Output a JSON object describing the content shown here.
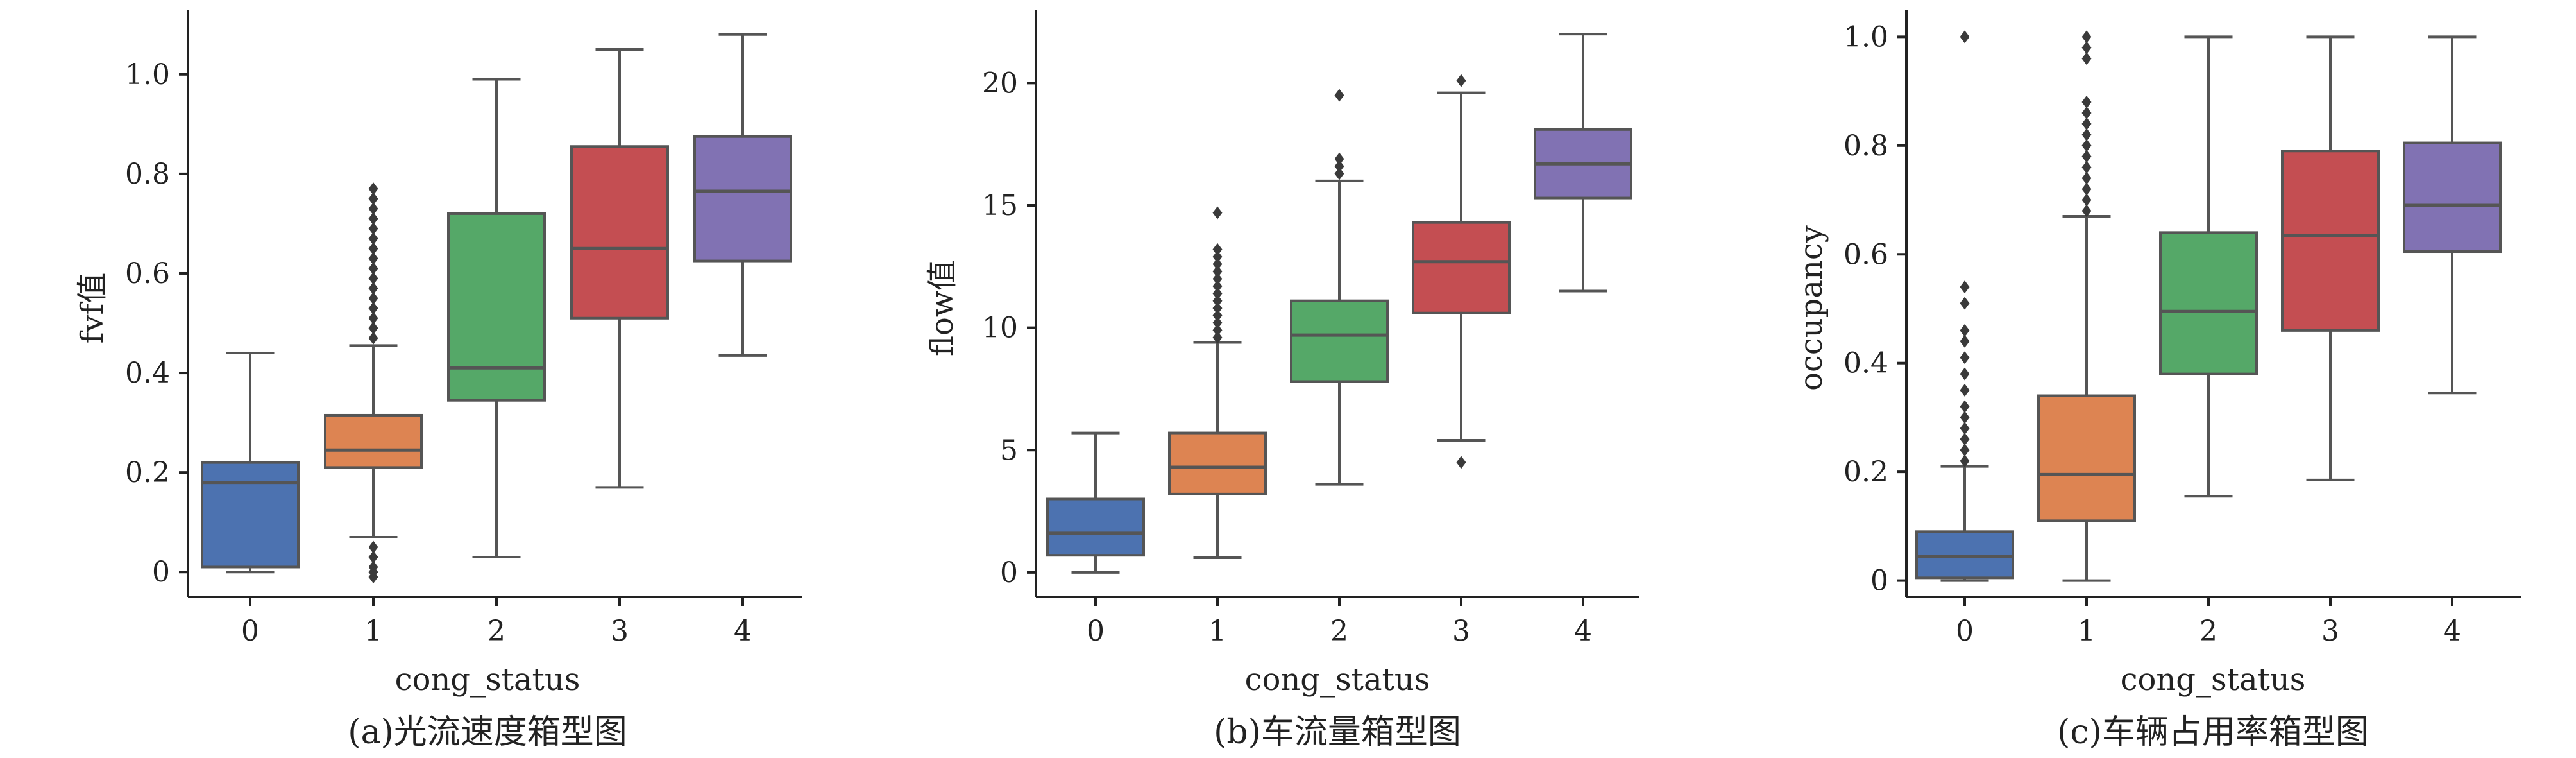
{
  "chart_data": [
    {
      "type": "box",
      "caption": "(a)光流速度箱型图",
      "xlabel": "cong_status",
      "ylabel": "fvf值",
      "categories": [
        "0",
        "1",
        "2",
        "3",
        "4"
      ],
      "ylim": [
        -0.05,
        1.13
      ],
      "yticks": [
        0,
        0.2,
        0.4,
        0.6,
        0.8,
        1.0
      ],
      "ytick_labels": [
        "0",
        "0.2",
        "0.4",
        "0.6",
        "0.8",
        "1.0"
      ],
      "boxes": [
        {
          "category": "0",
          "whisker_low": 0.0,
          "q1": 0.01,
          "median": 0.18,
          "q3": 0.22,
          "whisker_high": 0.44,
          "outliers": []
        },
        {
          "category": "1",
          "whisker_low": 0.07,
          "q1": 0.21,
          "median": 0.245,
          "q3": 0.315,
          "whisker_high": 0.455,
          "outliers": [
            0.47,
            0.49,
            0.51,
            0.53,
            0.55,
            0.57,
            0.59,
            0.61,
            0.63,
            0.65,
            0.67,
            0.69,
            0.71,
            0.73,
            0.75,
            0.77,
            0.05,
            0.03,
            0.01,
            0.0,
            -0.01
          ]
        },
        {
          "category": "2",
          "whisker_low": 0.03,
          "q1": 0.345,
          "median": 0.41,
          "q3": 0.72,
          "whisker_high": 0.99,
          "outliers": []
        },
        {
          "category": "3",
          "whisker_low": 0.17,
          "q1": 0.51,
          "median": 0.65,
          "q3": 0.855,
          "whisker_high": 1.05,
          "outliers": []
        },
        {
          "category": "4",
          "whisker_low": 0.435,
          "q1": 0.625,
          "median": 0.765,
          "q3": 0.875,
          "whisker_high": 1.08,
          "outliers": []
        }
      ]
    },
    {
      "type": "box",
      "caption": "(b)车流量箱型图",
      "xlabel": "cong_status",
      "ylabel": "flow值",
      "categories": [
        "0",
        "1",
        "2",
        "3",
        "4"
      ],
      "ylim": [
        -1.0,
        23.0
      ],
      "yticks": [
        0,
        5,
        10,
        15,
        20
      ],
      "ytick_labels": [
        "0",
        "5",
        "10",
        "15",
        "20"
      ],
      "boxes": [
        {
          "category": "0",
          "whisker_low": 0.0,
          "q1": 0.7,
          "median": 1.6,
          "q3": 3.0,
          "whisker_high": 5.7,
          "outliers": []
        },
        {
          "category": "1",
          "whisker_low": 0.6,
          "q1": 3.2,
          "median": 4.3,
          "q3": 5.7,
          "whisker_high": 9.4,
          "outliers": [
            9.6,
            9.9,
            10.2,
            10.5,
            10.8,
            11.1,
            11.4,
            11.7,
            12.0,
            12.3,
            12.6,
            12.9,
            13.2,
            14.7
          ]
        },
        {
          "category": "2",
          "whisker_low": 3.6,
          "q1": 7.8,
          "median": 9.7,
          "q3": 11.1,
          "whisker_high": 16.0,
          "outliers": [
            16.3,
            16.6,
            16.9,
            19.5
          ]
        },
        {
          "category": "3",
          "whisker_low": 5.4,
          "q1": 10.6,
          "median": 12.7,
          "q3": 14.3,
          "whisker_high": 19.6,
          "outliers": [
            20.1,
            4.5
          ]
        },
        {
          "category": "4",
          "whisker_low": 11.5,
          "q1": 15.3,
          "median": 16.7,
          "q3": 18.1,
          "whisker_high": 22.0,
          "outliers": []
        }
      ]
    },
    {
      "type": "box",
      "caption": "(c)车辆占用率箱型图",
      "xlabel": "cong_status",
      "ylabel": "occupancy",
      "categories": [
        "0",
        "1",
        "2",
        "3",
        "4"
      ],
      "ylim": [
        -0.03,
        1.05
      ],
      "yticks": [
        0,
        0.2,
        0.4,
        0.6,
        0.8,
        1.0
      ],
      "ytick_labels": [
        "0",
        "0.2",
        "0.4",
        "0.6",
        "0.8",
        "1.0"
      ],
      "boxes": [
        {
          "category": "0",
          "whisker_low": 0.0,
          "q1": 0.005,
          "median": 0.045,
          "q3": 0.09,
          "whisker_high": 0.21,
          "outliers": [
            0.22,
            0.24,
            0.26,
            0.28,
            0.3,
            0.32,
            0.35,
            0.38,
            0.41,
            0.44,
            0.46,
            0.51,
            0.54,
            1.0
          ]
        },
        {
          "category": "1",
          "whisker_low": 0.0,
          "q1": 0.11,
          "median": 0.195,
          "q3": 0.34,
          "whisker_high": 0.67,
          "outliers": [
            0.68,
            0.7,
            0.72,
            0.74,
            0.76,
            0.78,
            0.8,
            0.82,
            0.84,
            0.86,
            0.88,
            0.96,
            0.98,
            1.0
          ]
        },
        {
          "category": "2",
          "whisker_low": 0.155,
          "q1": 0.38,
          "median": 0.495,
          "q3": 0.64,
          "whisker_high": 1.0,
          "outliers": []
        },
        {
          "category": "3",
          "whisker_low": 0.185,
          "q1": 0.46,
          "median": 0.635,
          "q3": 0.79,
          "whisker_high": 1.0,
          "outliers": []
        },
        {
          "category": "4",
          "whisker_low": 0.345,
          "q1": 0.605,
          "median": 0.69,
          "q3": 0.805,
          "whisker_high": 1.0,
          "outliers": []
        }
      ]
    }
  ],
  "box_colors": [
    "#4c72b0",
    "#dd8452",
    "#55a868",
    "#c44e52",
    "#8172b3"
  ],
  "line_color": "#555555"
}
